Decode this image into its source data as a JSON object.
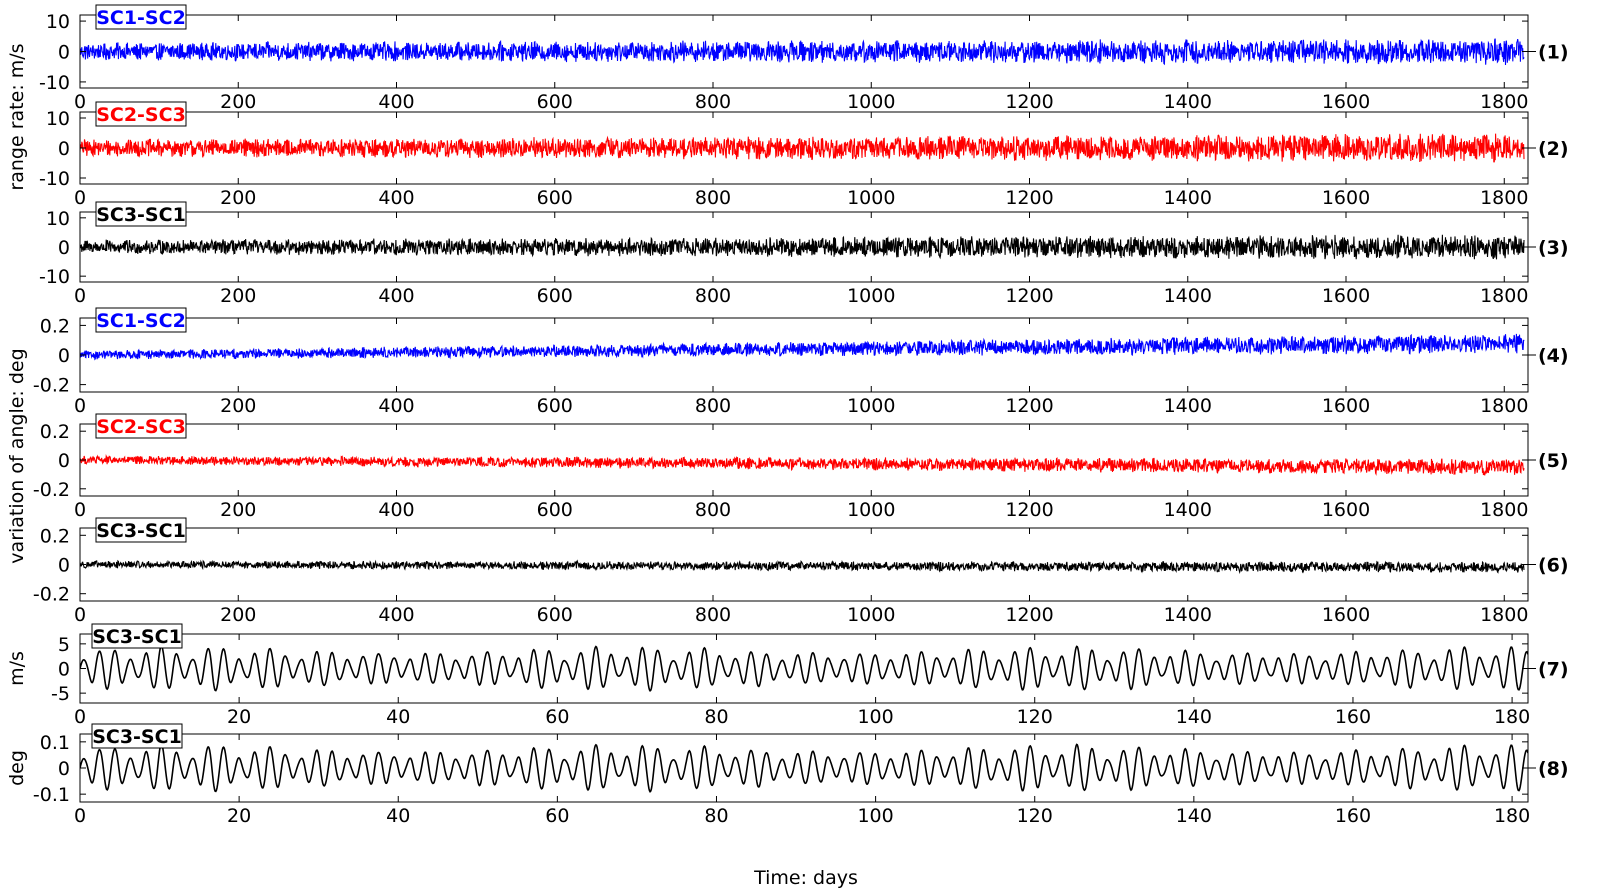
{
  "chart_data": {
    "type": "line",
    "xlabel": "Time: days",
    "group_ylabels": [
      "range rate: m/s",
      "variation of angle: deg"
    ],
    "panels": [
      {
        "number": "(1)",
        "series_name": "SC1-SC2",
        "color": "#0000ff",
        "xlim": [
          0,
          1830
        ],
        "xticks": [
          0,
          200,
          400,
          600,
          800,
          1000,
          1200,
          1400,
          1600,
          1800
        ],
        "ylim": [
          -12,
          12
        ],
        "yticks": [
          10,
          0,
          -10
        ],
        "ytick_labels": [
          "10",
          "0",
          "-10"
        ],
        "trend": [
          0,
          0
        ],
        "amplitude": [
          3.0,
          4.5
        ],
        "kind": "noise"
      },
      {
        "number": "(2)",
        "series_name": "SC2-SC3",
        "color": "#ff0000",
        "xlim": [
          0,
          1830
        ],
        "xticks": [
          0,
          200,
          400,
          600,
          800,
          1000,
          1200,
          1400,
          1600,
          1800
        ],
        "ylim": [
          -12,
          12
        ],
        "yticks": [
          10,
          0,
          -10
        ],
        "ytick_labels": [
          "10",
          "0",
          "-10"
        ],
        "trend": [
          0,
          0
        ],
        "amplitude": [
          3.0,
          5.0
        ],
        "kind": "noise"
      },
      {
        "number": "(3)",
        "series_name": "SC3-SC1",
        "color": "#000000",
        "xlim": [
          0,
          1830
        ],
        "xticks": [
          0,
          200,
          400,
          600,
          800,
          1000,
          1200,
          1400,
          1600,
          1800
        ],
        "ylim": [
          -12,
          12
        ],
        "yticks": [
          10,
          0,
          -10
        ],
        "ytick_labels": [
          "10",
          "0",
          "-10"
        ],
        "trend": [
          0,
          0
        ],
        "amplitude": [
          2.5,
          4.5
        ],
        "kind": "noise"
      },
      {
        "number": "(4)",
        "series_name": "SC1-SC2",
        "color": "#0000ff",
        "xlim": [
          0,
          1830
        ],
        "xticks": [
          0,
          200,
          400,
          600,
          800,
          1000,
          1200,
          1400,
          1600,
          1800
        ],
        "ylim": [
          -0.25,
          0.25
        ],
        "yticks": [
          0.2,
          0,
          -0.2
        ],
        "ytick_labels": [
          "0.2",
          "0",
          "-0.2"
        ],
        "trend": [
          0,
          0.08
        ],
        "amplitude": [
          0.03,
          0.07
        ],
        "kind": "noise"
      },
      {
        "number": "(5)",
        "series_name": "SC2-SC3",
        "color": "#ff0000",
        "xlim": [
          0,
          1830
        ],
        "xticks": [
          0,
          200,
          400,
          600,
          800,
          1000,
          1200,
          1400,
          1600,
          1800
        ],
        "ylim": [
          -0.25,
          0.25
        ],
        "yticks": [
          0.2,
          0,
          -0.2
        ],
        "ytick_labels": [
          "0.2",
          "0",
          "-0.2"
        ],
        "trend": [
          0,
          -0.05
        ],
        "amplitude": [
          0.03,
          0.06
        ],
        "kind": "noise"
      },
      {
        "number": "(6)",
        "series_name": "SC3-SC1",
        "color": "#000000",
        "xlim": [
          0,
          1830
        ],
        "xticks": [
          0,
          200,
          400,
          600,
          800,
          1000,
          1200,
          1400,
          1600,
          1800
        ],
        "ylim": [
          -0.25,
          0.25
        ],
        "yticks": [
          0.2,
          0,
          -0.2
        ],
        "ytick_labels": [
          "0.2",
          "0",
          "-0.2"
        ],
        "trend": [
          0,
          -0.02
        ],
        "amplitude": [
          0.025,
          0.04
        ],
        "kind": "noise"
      },
      {
        "number": "(7)",
        "series_name": "SC3-SC1",
        "color": "#000000",
        "ylabel": "m/s",
        "xlim": [
          0,
          182
        ],
        "xticks": [
          0,
          20,
          40,
          60,
          80,
          100,
          120,
          140,
          160,
          180
        ],
        "ylim": [
          -7,
          7
        ],
        "yticks": [
          5,
          0,
          -5
        ],
        "ytick_labels": [
          "5",
          "0",
          "-5"
        ],
        "period_days": 1.95,
        "peak_amplitude": 4.5,
        "kind": "wave"
      },
      {
        "number": "(8)",
        "series_name": "SC3-SC1",
        "color": "#000000",
        "ylabel": "deg",
        "xlim": [
          0,
          182
        ],
        "xticks": [
          0,
          20,
          40,
          60,
          80,
          100,
          120,
          140,
          160,
          180
        ],
        "ylim": [
          -0.13,
          0.13
        ],
        "yticks": [
          0.1,
          0,
          -0.1
        ],
        "ytick_labels": [
          "0.1",
          "0",
          "-0.1"
        ],
        "period_days": 1.95,
        "peak_amplitude": 0.09,
        "kind": "wave"
      }
    ]
  }
}
